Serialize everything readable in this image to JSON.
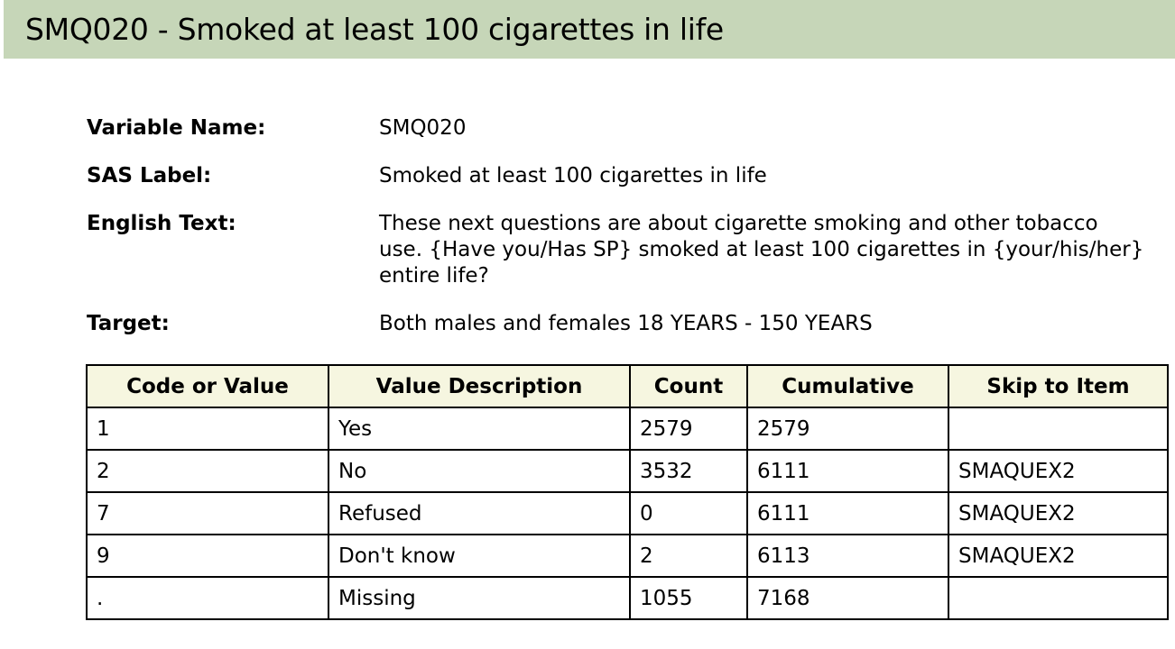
{
  "page": {
    "title": "SMQ020 - Smoked at least 100 cigarettes in life",
    "title_bar_color": "#c6d6b8",
    "table_header_color": "#f6f6e0"
  },
  "info": {
    "variable_name": {
      "label": "Variable Name:",
      "value": "SMQ020"
    },
    "sas_label": {
      "label": "SAS Label:",
      "value": "Smoked at least 100 cigarettes in life"
    },
    "english_text": {
      "label": "English Text:",
      "value": "These next questions are about cigarette smoking and other tobacco use. {Have you/Has SP} smoked at least 100 cigarettes in {your/his/her} entire life?"
    },
    "target": {
      "label": "Target:",
      "value": "Both males and females 18 YEARS - 150 YEARS"
    }
  },
  "table": {
    "headers": [
      "Code or Value",
      "Value Description",
      "Count",
      "Cumulative",
      "Skip to Item"
    ],
    "rows": [
      [
        "1",
        "Yes",
        "2579",
        "2579",
        ""
      ],
      [
        "2",
        "No",
        "3532",
        "6111",
        "SMAQUEX2"
      ],
      [
        "7",
        "Refused",
        "0",
        "6111",
        "SMAQUEX2"
      ],
      [
        "9",
        "Don't know",
        "2",
        "6113",
        "SMAQUEX2"
      ],
      [
        ".",
        "Missing",
        "1055",
        "7168",
        ""
      ]
    ]
  }
}
